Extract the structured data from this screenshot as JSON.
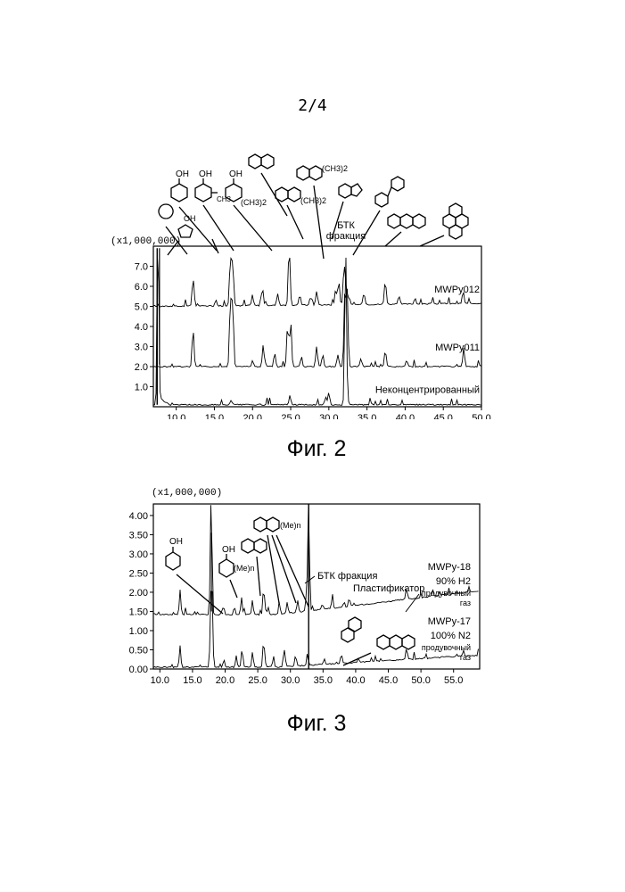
{
  "page_number": "2/4",
  "figures": [
    {
      "caption": "Фиг. 2",
      "multiplier": "(x1,000,000)",
      "bands_label": "БТК\nфракция",
      "bands_label_lines": [
        "БТК",
        "фракция"
      ],
      "trace_labels": [
        "MWPy012",
        "MWPy011",
        "Неконцентрированный"
      ],
      "structure_labels": [
        "OH",
        "OH",
        "CH3",
        "OH",
        "(CH3)2",
        "(CH3)2",
        "(CH3)2",
        "OH"
      ]
    },
    {
      "caption": "Фиг. 3",
      "multiplier": "(x1,000,000)",
      "btk_label": "БТК фракция",
      "plasticizer_label": "Пластификатор",
      "trace_labels": [
        {
          "id": "MWPy-18",
          "gas": "90% H2",
          "note_lines": [
            "продувочный",
            "газ"
          ]
        },
        {
          "id": "MWPy-17",
          "gas": "100% N2",
          "note_lines": [
            "продувочный",
            "газ"
          ]
        }
      ],
      "structure_labels": [
        "OH",
        "OH",
        "(Me)n",
        "(Me)n"
      ]
    }
  ],
  "chart_data": [
    {
      "type": "line",
      "title": "",
      "xlabel": "",
      "ylabel": "",
      "x_ticks": [
        "10.0",
        "15.0",
        "20.0",
        "25.0",
        "30.0",
        "35.0",
        "40.0",
        "45.0",
        "50.0"
      ],
      "y_ticks": [
        "1.0",
        "2.0",
        "3.0",
        "4.0",
        "5.0",
        "6.0",
        "7.0"
      ],
      "xlim": [
        7.0,
        50.0
      ],
      "ylim": [
        0.0,
        8.0
      ],
      "series": [
        {
          "name": "MWPy012",
          "baseline": 5.0,
          "peaks": [
            [
              12.2,
              1.4
            ],
            [
              15.2,
              0.3
            ],
            [
              17.1,
              2.4
            ],
            [
              17.4,
              2.2
            ],
            [
              20.0,
              0.4
            ],
            [
              21.3,
              0.9
            ],
            [
              23.3,
              0.6
            ],
            [
              24.8,
              2.9
            ],
            [
              26.2,
              0.5
            ],
            [
              27.6,
              0.4
            ],
            [
              28.4,
              0.7
            ],
            [
              30.9,
              0.8
            ],
            [
              31.3,
              1.2
            ],
            [
              32.0,
              1.8
            ],
            [
              32.3,
              0.9
            ],
            [
              34.6,
              0.6
            ],
            [
              37.4,
              1.2
            ],
            [
              39.2,
              0.4
            ],
            [
              41.3,
              0.3
            ],
            [
              47.6,
              0.6
            ]
          ]
        },
        {
          "name": "MWPy011",
          "baseline": 2.0,
          "peaks": [
            [
              12.2,
              1.9
            ],
            [
              17.1,
              3.4
            ],
            [
              17.4,
              3.2
            ],
            [
              20.0,
              0.3
            ],
            [
              21.4,
              1.1
            ],
            [
              22.9,
              0.7
            ],
            [
              24.6,
              2.1
            ],
            [
              25.0,
              2.3
            ],
            [
              26.4,
              0.5
            ],
            [
              28.4,
              1.0
            ],
            [
              29.2,
              0.6
            ],
            [
              31.2,
              0.6
            ],
            [
              32.1,
              3.7
            ],
            [
              32.4,
              3.8
            ],
            [
              34.2,
              0.4
            ],
            [
              37.4,
              0.8
            ],
            [
              40.2,
              0.3
            ],
            [
              47.7,
              0.7
            ]
          ]
        },
        {
          "name": "Неконцентрированный",
          "baseline": 0.1,
          "peaks": [
            [
              7.6,
              2.0
            ],
            [
              17.2,
              0.2
            ],
            [
              24.9,
              0.5
            ],
            [
              29.6,
              0.4
            ],
            [
              30.0,
              0.6
            ],
            [
              32.2,
              7.7
            ]
          ]
        }
      ]
    },
    {
      "type": "line",
      "title": "",
      "xlabel": "",
      "ylabel": "",
      "x_ticks": [
        "10.0",
        "15.0",
        "20.0",
        "25.0",
        "30.0",
        "35.0",
        "40.0",
        "45.0",
        "50.0",
        "55.0"
      ],
      "y_ticks": [
        "0.00",
        "0.50",
        "1.00",
        "1.50",
        "2.00",
        "2.50",
        "3.00",
        "3.50",
        "4.00"
      ],
      "xlim": [
        9.0,
        59.0
      ],
      "ylim": [
        0.0,
        4.3
      ],
      "series": [
        {
          "name": "MWPy-18",
          "baseline": 1.42,
          "peaks": [
            [
              13.1,
              0.65
            ],
            [
              17.8,
              1.25
            ],
            [
              17.9,
              2.1
            ],
            [
              19.6,
              0.2
            ],
            [
              21.4,
              0.2
            ],
            [
              22.5,
              0.45
            ],
            [
              24.2,
              0.3
            ],
            [
              25.9,
              0.75
            ],
            [
              26.6,
              0.2
            ],
            [
              28.3,
              0.35
            ],
            [
              29.5,
              0.3
            ],
            [
              31.1,
              0.3
            ],
            [
              32.5,
              0.6
            ],
            [
              32.8,
              2.8
            ],
            [
              34.9,
              0.15
            ],
            [
              36.4,
              0.25
            ],
            [
              47.8,
              0.3
            ]
          ]
        },
        {
          "name": "MWPy-17",
          "baseline": 0.05,
          "peaks": [
            [
              13.1,
              0.55
            ],
            [
              17.8,
              1.5
            ],
            [
              18.0,
              1.7
            ],
            [
              19.8,
              0.2
            ],
            [
              21.7,
              0.3
            ],
            [
              22.6,
              0.5
            ],
            [
              24.2,
              0.4
            ],
            [
              25.9,
              0.75
            ],
            [
              27.4,
              0.3
            ],
            [
              29.1,
              0.45
            ],
            [
              30.8,
              0.3
            ],
            [
              32.6,
              0.3
            ],
            [
              35.2,
              0.15
            ],
            [
              37.8,
              0.25
            ],
            [
              40.4,
              0.1
            ],
            [
              47.8,
              0.3
            ]
          ]
        }
      ],
      "markers": [
        {
          "x": 32.8,
          "label": ""
        }
      ]
    }
  ]
}
